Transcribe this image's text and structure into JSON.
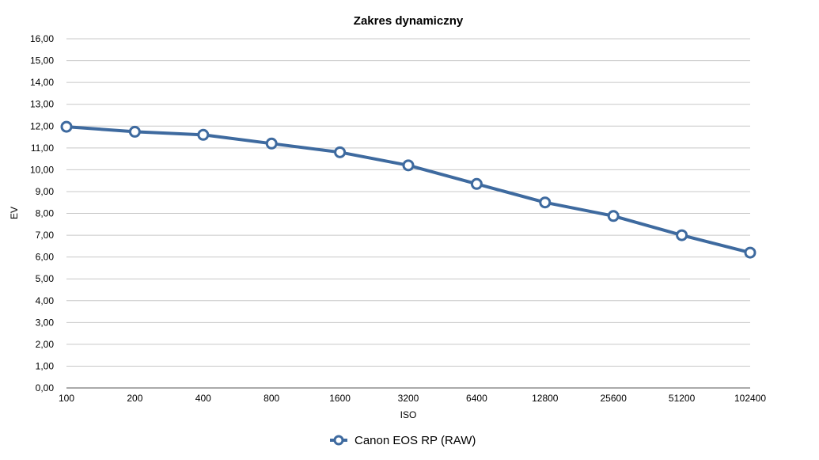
{
  "chart_data": {
    "type": "line",
    "title": "Zakres dynamiczny",
    "xlabel": "ISO",
    "ylabel": "EV",
    "categories": [
      "100",
      "200",
      "400",
      "800",
      "1600",
      "3200",
      "6400",
      "12800",
      "25600",
      "51200",
      "102400"
    ],
    "series": [
      {
        "name": "Canon EOS RP (RAW)",
        "values": [
          11.97,
          11.74,
          11.6,
          11.2,
          10.8,
          10.2,
          9.35,
          8.5,
          7.88,
          7.0,
          6.2
        ],
        "color": "#3e6a9f",
        "marker": "circle-hollow"
      }
    ],
    "ylim": [
      0,
      16
    ],
    "y_ticks": [
      "0,00",
      "1,00",
      "2,00",
      "3,00",
      "4,00",
      "5,00",
      "6,00",
      "7,00",
      "8,00",
      "9,00",
      "10,00",
      "11,00",
      "12,00",
      "13,00",
      "14,00",
      "15,00",
      "16,00"
    ],
    "grid": true,
    "grid_color": "#c8c8c8",
    "legend_position": "bottom-center"
  }
}
